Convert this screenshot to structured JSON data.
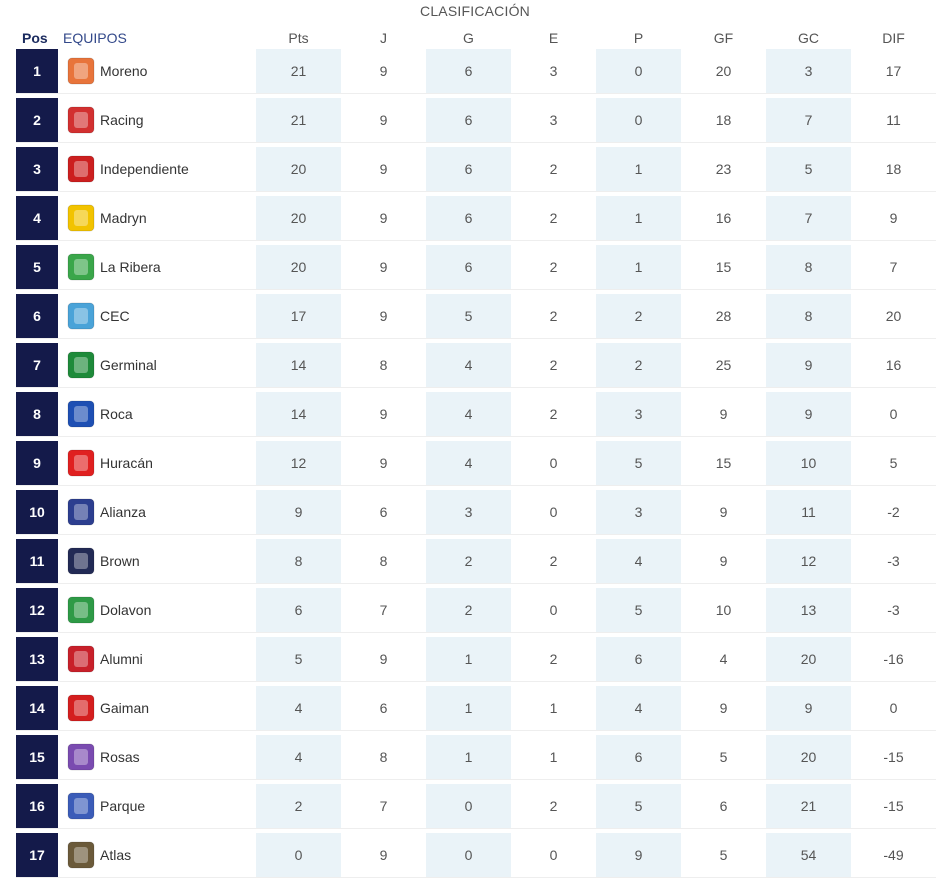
{
  "title": "CLASIFICACIÓN",
  "headers": {
    "pos": "Pos",
    "equipos": "EQUIPOS",
    "stats": [
      "Pts",
      "J",
      "G",
      "E",
      "P",
      "GF",
      "GC",
      "DIF"
    ]
  },
  "rows": [
    {
      "pos": "1",
      "team": "Moreno",
      "logo_icon": "moreno-logo-icon",
      "logo_color": "#e8743b",
      "stats": [
        "21",
        "9",
        "6",
        "3",
        "0",
        "20",
        "3",
        "17"
      ]
    },
    {
      "pos": "2",
      "team": "Racing",
      "logo_icon": "racing-logo-icon",
      "logo_color": "#d23030",
      "stats": [
        "21",
        "9",
        "6",
        "3",
        "0",
        "18",
        "7",
        "11"
      ]
    },
    {
      "pos": "3",
      "team": "Independiente",
      "logo_icon": "independiente-logo-icon",
      "logo_color": "#cc1f1f",
      "stats": [
        "20",
        "9",
        "6",
        "2",
        "1",
        "23",
        "5",
        "18"
      ]
    },
    {
      "pos": "4",
      "team": "Madryn",
      "logo_icon": "madryn-logo-icon",
      "logo_color": "#f2c300",
      "stats": [
        "20",
        "9",
        "6",
        "2",
        "1",
        "16",
        "7",
        "9"
      ]
    },
    {
      "pos": "5",
      "team": "La Ribera",
      "logo_icon": "la-ribera-logo-icon",
      "logo_color": "#3aa64a",
      "stats": [
        "20",
        "9",
        "6",
        "2",
        "1",
        "15",
        "8",
        "7"
      ]
    },
    {
      "pos": "6",
      "team": "CEC",
      "logo_icon": "cec-logo-icon",
      "logo_color": "#4aa3d8",
      "stats": [
        "17",
        "9",
        "5",
        "2",
        "2",
        "28",
        "8",
        "20"
      ]
    },
    {
      "pos": "7",
      "team": "Germinal",
      "logo_icon": "germinal-logo-icon",
      "logo_color": "#1e8a3a",
      "stats": [
        "14",
        "8",
        "4",
        "2",
        "2",
        "25",
        "9",
        "16"
      ]
    },
    {
      "pos": "8",
      "team": "Roca",
      "logo_icon": "roca-logo-icon",
      "logo_color": "#1e4fb3",
      "stats": [
        "14",
        "9",
        "4",
        "2",
        "3",
        "9",
        "9",
        "0"
      ]
    },
    {
      "pos": "9",
      "team": "Huracán",
      "logo_icon": "huracan-logo-icon",
      "logo_color": "#e02020",
      "stats": [
        "12",
        "9",
        "4",
        "0",
        "5",
        "15",
        "10",
        "5"
      ]
    },
    {
      "pos": "10",
      "team": "Alianza",
      "logo_icon": "alianza-logo-icon",
      "logo_color": "#2c3e8f",
      "stats": [
        "9",
        "6",
        "3",
        "0",
        "3",
        "9",
        "11",
        "-2"
      ]
    },
    {
      "pos": "11",
      "team": "Brown",
      "logo_icon": "brown-logo-icon",
      "logo_color": "#222a55",
      "stats": [
        "8",
        "8",
        "2",
        "2",
        "4",
        "9",
        "12",
        "-3"
      ]
    },
    {
      "pos": "12",
      "team": "Dolavon",
      "logo_icon": "dolavon-logo-icon",
      "logo_color": "#2e9a46",
      "stats": [
        "6",
        "7",
        "2",
        "0",
        "5",
        "10",
        "13",
        "-3"
      ]
    },
    {
      "pos": "13",
      "team": "Alumni",
      "logo_icon": "alumni-logo-icon",
      "logo_color": "#c8202a",
      "stats": [
        "5",
        "9",
        "1",
        "2",
        "6",
        "4",
        "20",
        "-16"
      ]
    },
    {
      "pos": "14",
      "team": "Gaiman",
      "logo_icon": "gaiman-logo-icon",
      "logo_color": "#d41e1e",
      "stats": [
        "4",
        "6",
        "1",
        "1",
        "4",
        "9",
        "9",
        "0"
      ]
    },
    {
      "pos": "15",
      "team": "Rosas",
      "logo_icon": "rosas-logo-icon",
      "logo_color": "#7a4bb0",
      "stats": [
        "4",
        "8",
        "1",
        "1",
        "6",
        "5",
        "20",
        "-15"
      ]
    },
    {
      "pos": "16",
      "team": "Parque",
      "logo_icon": "parque-logo-icon",
      "logo_color": "#3b5cb8",
      "stats": [
        "2",
        "7",
        "0",
        "2",
        "5",
        "6",
        "21",
        "-15"
      ]
    },
    {
      "pos": "17",
      "team": "Atlas",
      "logo_icon": "atlas-logo-icon",
      "logo_color": "#6b5a3a",
      "stats": [
        "0",
        "9",
        "0",
        "0",
        "9",
        "5",
        "54",
        "-49"
      ]
    }
  ]
}
